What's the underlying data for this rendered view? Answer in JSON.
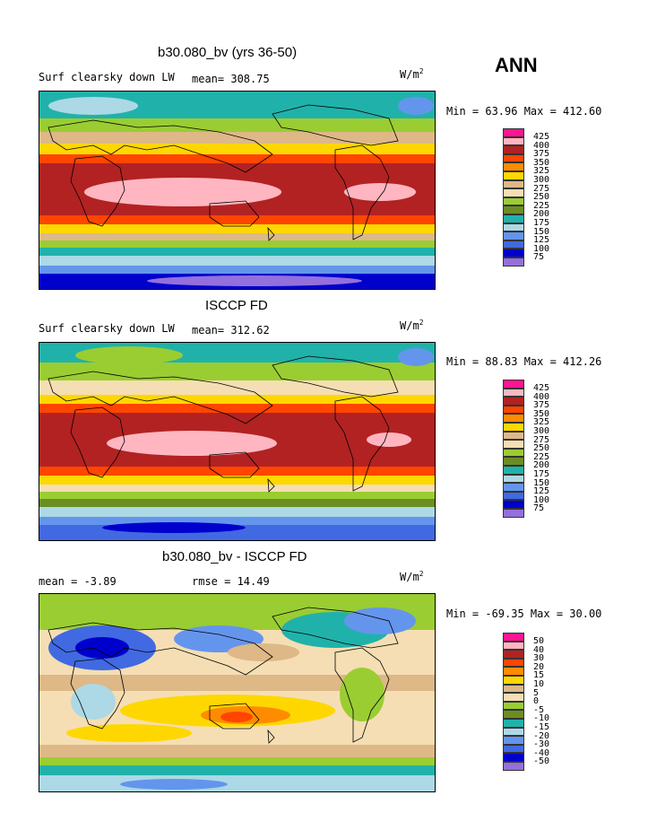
{
  "season": "ANN",
  "panels": [
    {
      "title": "b30.080_bv (yrs 36-50)",
      "left_label": "Surf clearsky down LW",
      "stat": "mean= 308.75",
      "stat2": "",
      "units": "W/m",
      "units_sup": "2",
      "minmax": "Min =  63.96 Max = 412.60",
      "levels": [
        "425",
        "400",
        "375",
        "350",
        "325",
        "300",
        "275",
        "250",
        "225",
        "200",
        "175",
        "150",
        "125",
        "100",
        "75"
      ],
      "colors": [
        "#ff1493",
        "#ffb6c1",
        "#b22222",
        "#ff4500",
        "#ff8c00",
        "#ffd700",
        "#deb887",
        "#f5deb3",
        "#9acd32",
        "#6b8e23",
        "#20b2aa",
        "#add8e6",
        "#6495ed",
        "#4169e1",
        "#0000cd",
        "#9370db"
      ],
      "band_levels": [
        0,
        1,
        2,
        3,
        4,
        5,
        6,
        7,
        8,
        9,
        10,
        11,
        12,
        13,
        14,
        15
      ]
    },
    {
      "title": "ISCCP FD",
      "left_label": "Surf clearsky down LW",
      "stat": "mean= 312.62",
      "stat2": "",
      "units": "W/m",
      "units_sup": "2",
      "minmax": "Min =  88.83 Max = 412.26",
      "levels": [
        "425",
        "400",
        "375",
        "350",
        "325",
        "300",
        "275",
        "250",
        "225",
        "200",
        "175",
        "150",
        "125",
        "100",
        "75"
      ],
      "colors": [
        "#ff1493",
        "#ffb6c1",
        "#b22222",
        "#ff4500",
        "#ff8c00",
        "#ffd700",
        "#deb887",
        "#f5deb3",
        "#9acd32",
        "#6b8e23",
        "#20b2aa",
        "#add8e6",
        "#6495ed",
        "#4169e1",
        "#0000cd",
        "#9370db"
      ]
    },
    {
      "title": "b30.080_bv - ISCCP FD",
      "left_label": "mean =   -3.89",
      "stat": "rmse =  14.49",
      "stat2": "",
      "units": "W/m",
      "units_sup": "2",
      "minmax": "Min = -69.35 Max =  30.00",
      "levels": [
        "50",
        "40",
        "30",
        "20",
        "15",
        "10",
        "5",
        "0",
        "-5",
        "-10",
        "-15",
        "-20",
        "-30",
        "-40",
        "-50"
      ],
      "colors": [
        "#ff1493",
        "#ffb6c1",
        "#b22222",
        "#ff4500",
        "#ff8c00",
        "#ffd700",
        "#deb887",
        "#f5deb3",
        "#9acd32",
        "#6b8e23",
        "#20b2aa",
        "#add8e6",
        "#6495ed",
        "#4169e1",
        "#0000cd",
        "#9370db"
      ]
    }
  ]
}
